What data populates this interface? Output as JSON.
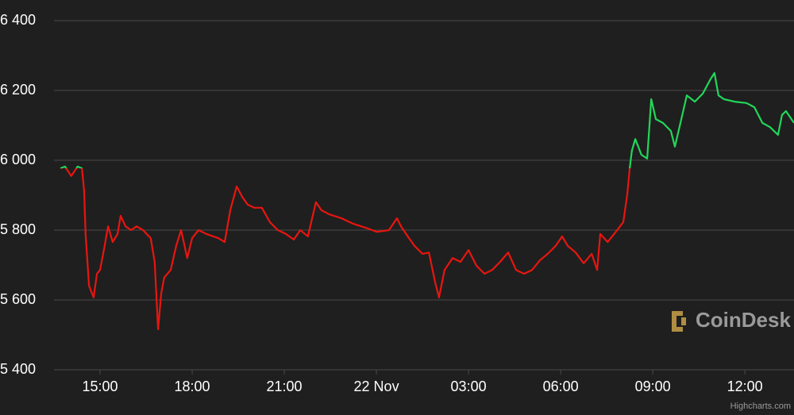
{
  "chart_data": {
    "type": "line",
    "x": [
      13.71,
      13.86,
      14.06,
      14.27,
      14.41,
      14.48,
      14.53,
      14.64,
      14.79,
      14.9,
      15.0,
      15.15,
      15.26,
      15.41,
      15.57,
      15.67,
      15.83,
      16.01,
      16.19,
      16.4,
      16.65,
      16.78,
      16.89,
      16.99,
      17.09,
      17.3,
      17.48,
      17.64,
      17.84,
      18.0,
      18.21,
      18.46,
      18.85,
      19.06,
      19.24,
      19.45,
      19.63,
      19.81,
      20.02,
      20.27,
      20.53,
      20.79,
      21.05,
      21.31,
      21.52,
      21.77,
      22.03,
      22.21,
      22.47,
      22.86,
      23.25,
      23.64,
      24.02,
      24.41,
      24.67,
      24.8,
      25.06,
      25.24,
      25.5,
      25.71,
      25.91,
      26.04,
      26.22,
      26.48,
      26.74,
      27.0,
      27.26,
      27.52,
      27.77,
      28.03,
      28.29,
      28.55,
      28.81,
      29.07,
      29.33,
      29.58,
      29.84,
      30.05,
      30.23,
      30.49,
      30.75,
      31.01,
      31.19,
      31.29,
      31.53,
      31.78,
      32.04,
      32.17,
      32.25,
      32.32,
      32.43,
      32.63,
      32.82,
      32.95,
      33.1,
      33.33,
      33.59,
      33.72,
      33.93,
      34.11,
      34.37,
      34.63,
      34.88,
      35.01,
      35.14,
      35.32,
      35.66,
      36.05,
      36.31,
      36.57,
      36.82,
      37.08,
      37.21,
      37.34,
      37.6
    ],
    "values": [
      5977,
      5982,
      5955,
      5982,
      5977,
      5914,
      5789,
      5641,
      5607,
      5675,
      5686,
      5755,
      5811,
      5766,
      5789,
      5841,
      5811,
      5800,
      5811,
      5800,
      5777,
      5709,
      5516,
      5618,
      5664,
      5686,
      5755,
      5800,
      5720,
      5777,
      5800,
      5789,
      5777,
      5766,
      5857,
      5925,
      5895,
      5873,
      5864,
      5864,
      5823,
      5800,
      5789,
      5773,
      5800,
      5782,
      5880,
      5857,
      5845,
      5834,
      5818,
      5807,
      5795,
      5800,
      5834,
      5811,
      5777,
      5755,
      5732,
      5736,
      5652,
      5607,
      5686,
      5720,
      5709,
      5743,
      5698,
      5675,
      5686,
      5709,
      5736,
      5686,
      5675,
      5686,
      5714,
      5732,
      5755,
      5782,
      5755,
      5736,
      5705,
      5732,
      5686,
      5789,
      5766,
      5793,
      5823,
      5902,
      5977,
      6027,
      6061,
      6016,
      6005,
      6175,
      6118,
      6107,
      6084,
      6039,
      6118,
      6186,
      6168,
      6191,
      6232,
      6250,
      6186,
      6175,
      6168,
      6164,
      6152,
      6107,
      6095,
      6073,
      6130,
      6141,
      6107
    ],
    "threshold": 5977,
    "color": "#e8150f",
    "color_above": "#22d65a",
    "xlim": [
      13.5,
      37.6
    ],
    "ylim": [
      5400,
      6400
    ],
    "xticks": [
      {
        "value": 15,
        "label": "15:00"
      },
      {
        "value": 18,
        "label": "18:00"
      },
      {
        "value": 21,
        "label": "21:00"
      },
      {
        "value": 24,
        "label": "22 Nov"
      },
      {
        "value": 27,
        "label": "03:00"
      },
      {
        "value": 30,
        "label": "06:00"
      },
      {
        "value": 33,
        "label": "09:00"
      },
      {
        "value": 36,
        "label": "12:00"
      }
    ],
    "yticks": [
      {
        "value": 6400,
        "label": "6 400"
      },
      {
        "value": 6200,
        "label": "6 200"
      },
      {
        "value": 6000,
        "label": "6 000"
      },
      {
        "value": 5800,
        "label": "5 800"
      },
      {
        "value": 5600,
        "label": "5 600"
      },
      {
        "value": 5400,
        "label": "5 400"
      }
    ],
    "grid": true,
    "watermark": "CoinDesk",
    "credits": "Highcharts.com"
  }
}
